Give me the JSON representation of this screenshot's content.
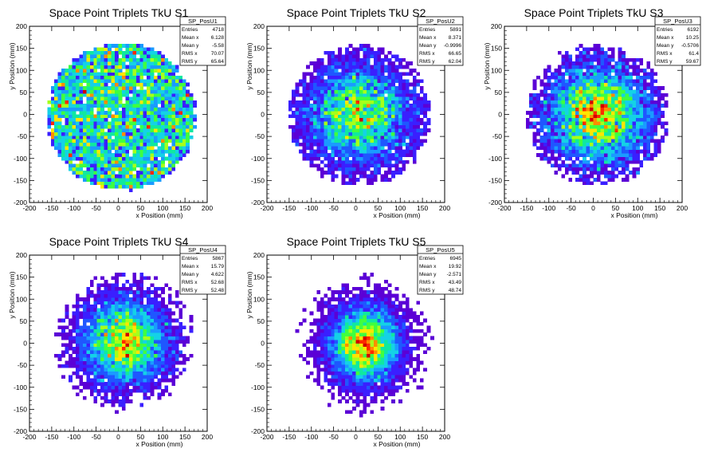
{
  "chart_data": [
    {
      "type": "heatmap",
      "title": "Space Point Triplets TkU S1",
      "xlabel": "x Position (mm)",
      "ylabel": "y Position (mm)",
      "xlim": [
        -200,
        200
      ],
      "ylim": [
        -200,
        200
      ],
      "xticks": [
        "-200",
        "-150",
        "-100",
        "-50",
        "0",
        "50",
        "100",
        "150",
        "200"
      ],
      "yticks": [
        "-200",
        "-150",
        "-100",
        "-50",
        "0",
        "50",
        "100",
        "150",
        "200"
      ],
      "stats_title": "SP_PosU1",
      "stats": [
        {
          "label": "Entries",
          "value": "4718"
        },
        {
          "label": "Mean x",
          "value": "6.128"
        },
        {
          "label": "Mean y",
          "value": "-5.58"
        },
        {
          "label": "RMS x",
          "value": "70.07"
        },
        {
          "label": "RMS y",
          "value": "65.64"
        }
      ],
      "binning": {
        "nx": 50,
        "ny": 50,
        "range": [
          -200,
          200
        ]
      },
      "distribution": {
        "mean_x": 6.128,
        "mean_y": -5.58,
        "rms_x": 70.07,
        "rms_y": 65.64,
        "entries": 4718,
        "profile": "flat-disk",
        "radius": 165
      }
    },
    {
      "type": "heatmap",
      "title": "Space Point Triplets TkU S2",
      "xlabel": "x Position (mm)",
      "ylabel": "y Position (mm)",
      "xlim": [
        -200,
        200
      ],
      "ylim": [
        -200,
        200
      ],
      "xticks": [
        "-200",
        "-150",
        "-100",
        "-50",
        "0",
        "50",
        "100",
        "150",
        "200"
      ],
      "yticks": [
        "-200",
        "-150",
        "-100",
        "-50",
        "0",
        "50",
        "100",
        "150",
        "200"
      ],
      "stats_title": "SP_PosU2",
      "stats": [
        {
          "label": "Entries",
          "value": "5891"
        },
        {
          "label": "Mean x",
          "value": "8.371"
        },
        {
          "label": "Mean y",
          "value": "-0.9996"
        },
        {
          "label": "RMS x",
          "value": "66.65"
        },
        {
          "label": "RMS y",
          "value": "62.04"
        }
      ],
      "binning": {
        "nx": 50,
        "ny": 50,
        "range": [
          -200,
          200
        ]
      },
      "distribution": {
        "mean_x": 8.371,
        "mean_y": -0.9996,
        "rms_x": 66.65,
        "rms_y": 62.04,
        "entries": 5891,
        "profile": "soft-disk",
        "radius": 160
      }
    },
    {
      "type": "heatmap",
      "title": "Space Point Triplets TkU S3",
      "xlabel": "x Position (mm)",
      "ylabel": "y Position (mm)",
      "xlim": [
        -200,
        200
      ],
      "ylim": [
        -200,
        200
      ],
      "xticks": [
        "-200",
        "-150",
        "-100",
        "-50",
        "0",
        "50",
        "100",
        "150",
        "200"
      ],
      "yticks": [
        "-200",
        "-150",
        "-100",
        "-50",
        "0",
        "50",
        "100",
        "150",
        "200"
      ],
      "stats_title": "SP_PosU3",
      "stats": [
        {
          "label": "Entries",
          "value": "6192"
        },
        {
          "label": "Mean x",
          "value": "10.25"
        },
        {
          "label": "Mean y",
          "value": "-0.5706"
        },
        {
          "label": "RMS x",
          "value": "61.4"
        },
        {
          "label": "RMS y",
          "value": "59.67"
        }
      ],
      "binning": {
        "nx": 50,
        "ny": 50,
        "range": [
          -200,
          200
        ]
      },
      "distribution": {
        "mean_x": 10.25,
        "mean_y": -0.5706,
        "rms_x": 61.4,
        "rms_y": 59.67,
        "entries": 6192,
        "profile": "soft-disk",
        "radius": 160
      }
    },
    {
      "type": "heatmap",
      "title": "Space Point Triplets TkU S4",
      "xlabel": "x Position (mm)",
      "ylabel": "y Position (mm)",
      "xlim": [
        -200,
        200
      ],
      "ylim": [
        -200,
        200
      ],
      "xticks": [
        "-200",
        "-150",
        "-100",
        "-50",
        "0",
        "50",
        "100",
        "150",
        "200"
      ],
      "yticks": [
        "-200",
        "-150",
        "-100",
        "-50",
        "0",
        "50",
        "100",
        "150",
        "200"
      ],
      "stats_title": "SP_PosU4",
      "stats": [
        {
          "label": "Entries",
          "value": "5867"
        },
        {
          "label": "Mean x",
          "value": "15.79"
        },
        {
          "label": "Mean y",
          "value": "4.622"
        },
        {
          "label": "RMS x",
          "value": "52.68"
        },
        {
          "label": "RMS y",
          "value": "52.48"
        }
      ],
      "binning": {
        "nx": 50,
        "ny": 50,
        "range": [
          -200,
          200
        ]
      },
      "distribution": {
        "mean_x": 15.79,
        "mean_y": 4.622,
        "rms_x": 52.68,
        "rms_y": 52.48,
        "entries": 5867,
        "profile": "gaussian",
        "radius": 160
      }
    },
    {
      "type": "heatmap",
      "title": "Space Point Triplets TkU S5",
      "xlabel": "x Position (mm)",
      "ylabel": "y Position (mm)",
      "xlim": [
        -200,
        200
      ],
      "ylim": [
        -200,
        200
      ],
      "xticks": [
        "-200",
        "-150",
        "-100",
        "-50",
        "0",
        "50",
        "100",
        "150",
        "200"
      ],
      "yticks": [
        "-200",
        "-150",
        "-100",
        "-50",
        "0",
        "50",
        "100",
        "150",
        "200"
      ],
      "stats_title": "SP_PosU5",
      "stats": [
        {
          "label": "Entries",
          "value": "6945"
        },
        {
          "label": "Mean x",
          "value": "19.92"
        },
        {
          "label": "Mean y",
          "value": "-2.571"
        },
        {
          "label": "RMS x",
          "value": "43.49"
        },
        {
          "label": "RMS y",
          "value": "48.74"
        }
      ],
      "binning": {
        "nx": 50,
        "ny": 50,
        "range": [
          -200,
          200
        ]
      },
      "distribution": {
        "mean_x": 19.92,
        "mean_y": -2.571,
        "rms_x": 43.49,
        "rms_y": 48.74,
        "entries": 6945,
        "profile": "gaussian",
        "radius": 160
      }
    }
  ],
  "palette": [
    "#5b00d6",
    "#3a1fff",
    "#1f57ff",
    "#1a9bff",
    "#14d2e6",
    "#10e8a0",
    "#3fff3f",
    "#a6ff1a",
    "#ffe600",
    "#ff8c00",
    "#ff2a00",
    "#d10000"
  ],
  "colors": {
    "frame": "#000000",
    "background": "#ffffff"
  }
}
